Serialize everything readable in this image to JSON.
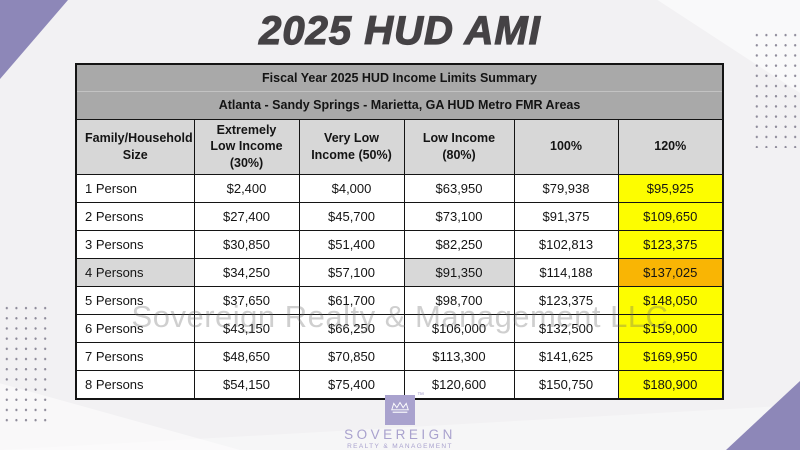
{
  "page": {
    "title": "2025 HUD AMI",
    "watermark": "Sovereign Realty & Management LLC",
    "background_color": "#f2f1f3",
    "accent_purple": "#8d87b8"
  },
  "table": {
    "title": "Fiscal Year 2025 HUD Income Limits Summary",
    "subtitle": "Atlanta - Sandy Springs - Marietta, GA HUD Metro FMR Areas",
    "columns": [
      "Family/Household Size",
      "Extremely Low Income (30%)",
      "Very Low Income (50%)",
      "Low Income (80%)",
      "100%",
      "120%"
    ],
    "rows": [
      {
        "label": "1 Person",
        "values": [
          "$2,400",
          "$4,000",
          "$63,950",
          "$79,938",
          "$95,925"
        ]
      },
      {
        "label": "2 Persons",
        "values": [
          "$27,400",
          "$45,700",
          "$73,100",
          "$91,375",
          "$109,650"
        ]
      },
      {
        "label": "3 Persons",
        "values": [
          "$30,850",
          "$51,400",
          "$82,250",
          "$102,813",
          "$123,375"
        ]
      },
      {
        "label": "4 Persons",
        "values": [
          "$34,250",
          "$57,100",
          "$91,350",
          "$114,188",
          "$137,025"
        ]
      },
      {
        "label": "5 Persons",
        "values": [
          "$37,650",
          "$61,700",
          "$98,700",
          "$123,375",
          "$148,050"
        ]
      },
      {
        "label": "6 Persons",
        "values": [
          "$43,150",
          "$66,250",
          "$106,000",
          "$132,500",
          "$159,000"
        ]
      },
      {
        "label": "7 Persons",
        "values": [
          "$48,650",
          "$70,850",
          "$113,300",
          "$141,625",
          "$169,950"
        ]
      },
      {
        "label": "8 Persons",
        "values": [
          "$54,150",
          "$75,400",
          "$120,600",
          "$150,750",
          "$180,900"
        ]
      }
    ],
    "highlight": {
      "highlighted_column": "120%",
      "highlighted_row": "4 Persons",
      "column_color": "#fdfd00",
      "row_intersection_color": "#f9b504",
      "row_gray_color": "#d8d8d8"
    }
  },
  "logo": {
    "name": "SOVEREIGN",
    "tagline": "REALTY & MANAGEMENT",
    "trademark": "™"
  }
}
